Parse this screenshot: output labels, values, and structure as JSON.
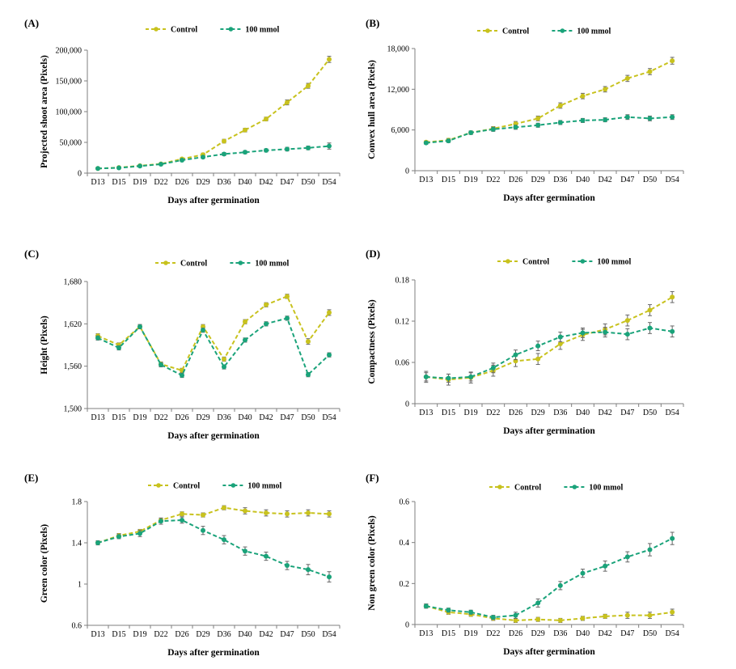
{
  "chart_data": [
    {
      "panel_label": "(A)",
      "type": "line",
      "categories": [
        "D13",
        "D15",
        "D19",
        "D22",
        "D26",
        "D29",
        "D36",
        "D40",
        "D42",
        "D47",
        "D50",
        "D54"
      ],
      "xlabel": "Days after germination",
      "ylabel": "Projected shoot area (Pixels)",
      "ylim": [
        0,
        200000
      ],
      "yticks": [
        0,
        50000,
        100000,
        150000,
        200000
      ],
      "ytick_labels": [
        "0",
        "50,000",
        "100,000",
        "150,000",
        "200,000"
      ],
      "legend_position": "top",
      "series": [
        {
          "name": "Control",
          "color": "#c8c21e",
          "values": [
            7500,
            9000,
            12000,
            15000,
            23000,
            30000,
            52000,
            70000,
            88000,
            115000,
            142000,
            185000
          ],
          "errors": [
            800,
            800,
            1000,
            1200,
            2000,
            2500,
            3000,
            3000,
            3000,
            4000,
            4000,
            5000
          ]
        },
        {
          "name": "100 mmol",
          "color": "#1aa37a",
          "values": [
            7500,
            8500,
            11500,
            14500,
            21000,
            26000,
            31000,
            34000,
            37000,
            39000,
            41000,
            44000
          ],
          "errors": [
            800,
            800,
            1000,
            1200,
            2000,
            2000,
            2500,
            2500,
            2500,
            3000,
            3000,
            5000
          ]
        }
      ]
    },
    {
      "panel_label": "(B)",
      "type": "line",
      "categories": [
        "D13",
        "D15",
        "D19",
        "D22",
        "D26",
        "D29",
        "D36",
        "D40",
        "D42",
        "D47",
        "D50",
        "D54"
      ],
      "xlabel": "Days after germination",
      "ylabel": "Convex hull area (Pixels)",
      "ylim": [
        0,
        18000
      ],
      "yticks": [
        0,
        6000,
        12000,
        18000
      ],
      "ytick_labels": [
        "0",
        "6,000",
        "12,000",
        "18,000"
      ],
      "legend_position": "top",
      "series": [
        {
          "name": "Control",
          "color": "#c8c21e",
          "values": [
            4200,
            4500,
            5600,
            6200,
            6900,
            7700,
            9600,
            11000,
            12000,
            13600,
            14600,
            16200
          ],
          "errors": [
            200,
            250,
            250,
            300,
            350,
            350,
            400,
            400,
            400,
            450,
            450,
            500
          ]
        },
        {
          "name": "100 mmol",
          "color": "#1aa37a",
          "values": [
            4100,
            4400,
            5600,
            6100,
            6400,
            6700,
            7100,
            7400,
            7500,
            7900,
            7700,
            7900
          ],
          "errors": [
            200,
            250,
            250,
            300,
            300,
            300,
            300,
            300,
            300,
            350,
            350,
            350
          ]
        }
      ]
    },
    {
      "panel_label": "(C)",
      "type": "line",
      "categories": [
        "D13",
        "D15",
        "D19",
        "D22",
        "D26",
        "D29",
        "D36",
        "D40",
        "D42",
        "D47",
        "D50",
        "D54"
      ],
      "xlabel": "Days after germination",
      "ylabel": "Height (Pixels)",
      "ylim": [
        1500,
        1680
      ],
      "yticks": [
        1500,
        1560,
        1620,
        1680
      ],
      "ytick_labels": [
        "1,500",
        "1,560",
        "1,620",
        "1,680"
      ],
      "legend_position": "top",
      "series": [
        {
          "name": "Control",
          "color": "#c8c21e",
          "values": [
            1603,
            1590,
            1616,
            1563,
            1554,
            1616,
            1570,
            1623,
            1647,
            1659,
            1595,
            1636
          ],
          "errors": [
            3,
            3,
            3,
            3,
            3,
            3,
            3,
            3,
            3,
            3,
            4,
            4
          ]
        },
        {
          "name": "100 mmol",
          "color": "#1aa37a",
          "values": [
            1600,
            1586,
            1616,
            1562,
            1547,
            1611,
            1559,
            1597,
            1620,
            1628,
            1548,
            1576
          ],
          "errors": [
            3,
            3,
            3,
            3,
            3,
            3,
            3,
            3,
            3,
            3,
            3,
            3
          ]
        }
      ]
    },
    {
      "panel_label": "(D)",
      "type": "line",
      "categories": [
        "D13",
        "D15",
        "D19",
        "D22",
        "D26",
        "D29",
        "D36",
        "D40",
        "D42",
        "D47",
        "D50",
        "D54"
      ],
      "xlabel": "Days after germination",
      "ylabel": "Compactness (Pixels)",
      "ylim": [
        0,
        0.18
      ],
      "yticks": [
        0,
        0.06,
        0.12,
        0.18
      ],
      "ytick_labels": [
        "0",
        "0.06",
        "0.12",
        "0.18"
      ],
      "legend_position": "top",
      "series": [
        {
          "name": "Control",
          "color": "#c8c21e",
          "values": [
            0.039,
            0.035,
            0.038,
            0.048,
            0.062,
            0.065,
            0.087,
            0.1,
            0.108,
            0.121,
            0.136,
            0.155
          ],
          "errors": [
            0.008,
            0.008,
            0.008,
            0.008,
            0.008,
            0.008,
            0.008,
            0.008,
            0.008,
            0.008,
            0.008,
            0.008
          ]
        },
        {
          "name": "100 mmol",
          "color": "#1aa37a",
          "values": [
            0.039,
            0.037,
            0.039,
            0.052,
            0.071,
            0.084,
            0.097,
            0.103,
            0.104,
            0.101,
            0.11,
            0.105
          ],
          "errors": [
            0.006,
            0.006,
            0.006,
            0.007,
            0.007,
            0.007,
            0.007,
            0.007,
            0.007,
            0.008,
            0.008,
            0.008
          ]
        }
      ]
    },
    {
      "panel_label": "(E)",
      "type": "line",
      "categories": [
        "D13",
        "D15",
        "D19",
        "D22",
        "D26",
        "D29",
        "D36",
        "D40",
        "D42",
        "D47",
        "D50",
        "D54"
      ],
      "xlabel": "Days after germination",
      "ylabel": "Green color (Pixels)",
      "ylim": [
        0.6,
        1.8
      ],
      "yticks": [
        0.6,
        1,
        1.4,
        1.8
      ],
      "ytick_labels": [
        "0.6",
        "1",
        "1.4",
        "1.8"
      ],
      "legend_position": "top",
      "series": [
        {
          "name": "Control",
          "color": "#c8c21e",
          "values": [
            1.4,
            1.47,
            1.51,
            1.62,
            1.68,
            1.67,
            1.74,
            1.71,
            1.69,
            1.68,
            1.69,
            1.68
          ],
          "errors": [
            0.02,
            0.02,
            0.02,
            0.02,
            0.02,
            0.02,
            0.02,
            0.03,
            0.03,
            0.03,
            0.03,
            0.03
          ]
        },
        {
          "name": "100 mmol",
          "color": "#1aa37a",
          "values": [
            1.4,
            1.46,
            1.49,
            1.61,
            1.62,
            1.52,
            1.43,
            1.32,
            1.27,
            1.18,
            1.14,
            1.07
          ],
          "errors": [
            0.02,
            0.02,
            0.03,
            0.03,
            0.03,
            0.04,
            0.04,
            0.04,
            0.04,
            0.04,
            0.05,
            0.05
          ]
        }
      ]
    },
    {
      "panel_label": "(F)",
      "type": "line",
      "categories": [
        "D13",
        "D15",
        "D19",
        "D22",
        "D26",
        "D29",
        "D36",
        "D40",
        "D42",
        "D47",
        "D50",
        "D54"
      ],
      "xlabel": "Days after germination",
      "ylabel": "Non green color (Pixels)",
      "ylim": [
        0,
        0.6
      ],
      "yticks": [
        0,
        0.2,
        0.4,
        0.6
      ],
      "ytick_labels": [
        "0",
        "0.2",
        "0.4",
        "0.6"
      ],
      "legend_position": "top",
      "series": [
        {
          "name": "Control",
          "color": "#c8c21e",
          "values": [
            0.09,
            0.06,
            0.05,
            0.03,
            0.02,
            0.025,
            0.02,
            0.03,
            0.04,
            0.045,
            0.045,
            0.06
          ],
          "errors": [
            0.01,
            0.01,
            0.01,
            0.01,
            0.01,
            0.01,
            0.01,
            0.01,
            0.01,
            0.015,
            0.015,
            0.015
          ]
        },
        {
          "name": "100 mmol",
          "color": "#1aa37a",
          "values": [
            0.09,
            0.07,
            0.06,
            0.035,
            0.045,
            0.105,
            0.19,
            0.25,
            0.285,
            0.33,
            0.365,
            0.42
          ],
          "errors": [
            0.01,
            0.01,
            0.01,
            0.01,
            0.015,
            0.02,
            0.02,
            0.02,
            0.025,
            0.025,
            0.03,
            0.03
          ]
        }
      ]
    }
  ]
}
